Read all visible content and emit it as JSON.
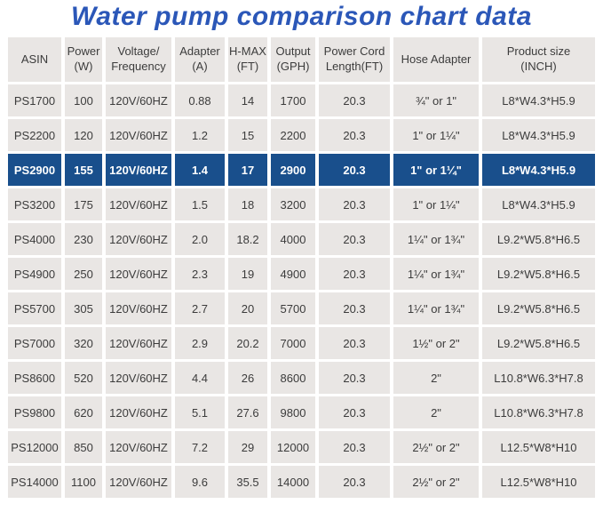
{
  "title": "Water pump comparison chart data",
  "colors": {
    "title_blue": "#2b57b8",
    "highlight_blue": "#194f8c",
    "cell_gray": "#e9e6e4",
    "text_dark": "#3c3c3c",
    "highlight_text": "#ffffff"
  },
  "chart_data": {
    "type": "table",
    "title": "Water pump comparison chart data",
    "columns": [
      "ASIN",
      "Power (W)",
      "Voltage/Frequency",
      "Adapter (A)",
      "H-MAX (FT)",
      "Output (GPH)",
      "Power Cord Length(FT)",
      "Hose Adapter",
      "Product size (INCH)"
    ],
    "column_header_lines": [
      [
        "ASIN"
      ],
      [
        "Power",
        "(W)"
      ],
      [
        "Voltage/",
        "Frequency"
      ],
      [
        "Adapter",
        "(A)"
      ],
      [
        "H-MAX",
        "(FT)"
      ],
      [
        "Output",
        "(GPH)"
      ],
      [
        "Power Cord",
        "Length(FT)"
      ],
      [
        "Hose Adapter"
      ],
      [
        "Product size",
        "(INCH)"
      ]
    ],
    "highlighted_row": "PS2900",
    "rows": [
      [
        "PS1700",
        "100",
        "120V/60HZ",
        "0.88",
        "14",
        "1700",
        "20.3",
        "¾\" or 1\"",
        "L8*W4.3*H5.9"
      ],
      [
        "PS2200",
        "120",
        "120V/60HZ",
        "1.2",
        "15",
        "2200",
        "20.3",
        "1\" or 1¼\"",
        "L8*W4.3*H5.9"
      ],
      [
        "PS2900",
        "155",
        "120V/60HZ",
        "1.4",
        "17",
        "2900",
        "20.3",
        "1\" or 1¼\"",
        "L8*W4.3*H5.9"
      ],
      [
        "PS3200",
        "175",
        "120V/60HZ",
        "1.5",
        "18",
        "3200",
        "20.3",
        "1\" or 1¼\"",
        "L8*W4.3*H5.9"
      ],
      [
        "PS4000",
        "230",
        "120V/60HZ",
        "2.0",
        "18.2",
        "4000",
        "20.3",
        "1¼\" or 1¾\"",
        "L9.2*W5.8*H6.5"
      ],
      [
        "PS4900",
        "250",
        "120V/60HZ",
        "2.3",
        "19",
        "4900",
        "20.3",
        "1¼\" or 1¾\"",
        "L9.2*W5.8*H6.5"
      ],
      [
        "PS5700",
        "305",
        "120V/60HZ",
        "2.7",
        "20",
        "5700",
        "20.3",
        "1¼\" or 1¾\"",
        "L9.2*W5.8*H6.5"
      ],
      [
        "PS7000",
        "320",
        "120V/60HZ",
        "2.9",
        "20.2",
        "7000",
        "20.3",
        "1½\" or 2\"",
        "L9.2*W5.8*H6.5"
      ],
      [
        "PS8600",
        "520",
        "120V/60HZ",
        "4.4",
        "26",
        "8600",
        "20.3",
        "2\"",
        "L10.8*W6.3*H7.8"
      ],
      [
        "PS9800",
        "620",
        "120V/60HZ",
        "5.1",
        "27.6",
        "9800",
        "20.3",
        "2\"",
        "L10.8*W6.3*H7.8"
      ],
      [
        "PS12000",
        "850",
        "120V/60HZ",
        "7.2",
        "29",
        "12000",
        "20.3",
        "2½\" or 2\"",
        "L12.5*W8*H10"
      ],
      [
        "PS14000",
        "1100",
        "120V/60HZ",
        "9.6",
        "35.5",
        "14000",
        "20.3",
        "2½\" or 2\"",
        "L12.5*W8*H10"
      ]
    ]
  }
}
